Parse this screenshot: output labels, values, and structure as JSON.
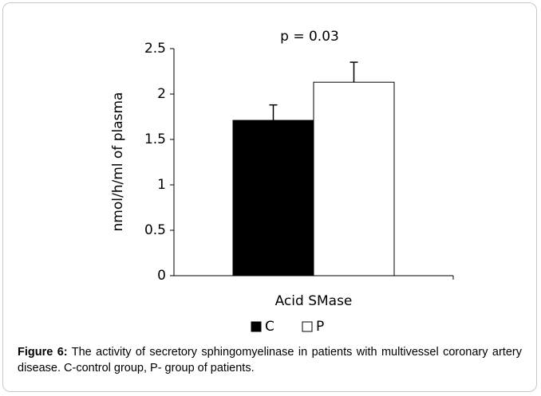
{
  "chart_data": {
    "type": "bar",
    "annotation": "p = 0.03",
    "ylabel": "nmol/h/ml of plasma",
    "categories": [
      "Acid SMase"
    ],
    "series": [
      {
        "name": "C",
        "color": "#000000",
        "values": [
          1.71
        ],
        "errors": [
          0.17
        ]
      },
      {
        "name": "P",
        "color": "#ffffff",
        "values": [
          2.13
        ],
        "errors": [
          0.22
        ]
      }
    ],
    "ylim": [
      0,
      2.5
    ],
    "yticks": [
      0,
      0.5,
      1,
      1.5,
      2,
      2.5
    ],
    "grid": false,
    "legend": "bottom",
    "caption_label": "Figure 6:",
    "caption": "The activity of secretory sphingomyelinase in patients with multivessel coronary artery disease. C-control group, P- group of patients."
  }
}
